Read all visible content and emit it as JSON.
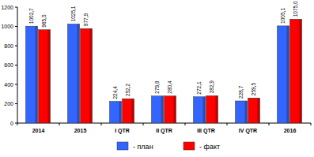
{
  "chart_data": {
    "type": "bar",
    "categories": [
      "2014",
      "2015",
      "I QTR",
      "II QTR",
      "III QTR",
      "IV QTR",
      "2016"
    ],
    "series": [
      {
        "name": "- план",
        "color": "#3366ff",
        "values": [
          1002.7,
          1025.1,
          224.4,
          279.8,
          272.1,
          228.7,
          1005.1
        ],
        "value_labels": [
          "1002,7",
          "1025,1",
          "224,4",
          "279,8",
          "272,1",
          "228,7",
          "1005,1"
        ]
      },
      {
        "name": "- факт",
        "color": "#ff0000",
        "values": [
          965.5,
          977.9,
          252.2,
          280.4,
          282.9,
          259.5,
          1075.0
        ],
        "value_labels": [
          "965,5",
          "977,9",
          "252,2",
          "280,4",
          "282,9",
          "259,5",
          "1075,0"
        ]
      }
    ],
    "ylim": [
      0,
      1200
    ],
    "yticks": [
      0,
      200,
      400,
      600,
      800,
      1000,
      1200
    ],
    "grid": false,
    "legend": "bottom",
    "data_labels": true
  }
}
